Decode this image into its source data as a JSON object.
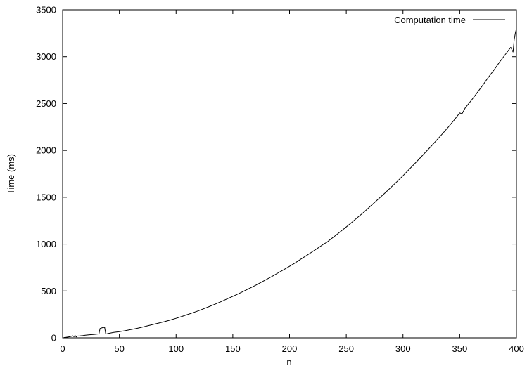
{
  "chart_data": {
    "type": "line",
    "xlabel": "n",
    "ylabel": "Time (ms)",
    "xlim": [
      0,
      400
    ],
    "ylim": [
      0,
      3500
    ],
    "xticks": [
      "0",
      "50",
      "100",
      "150",
      "200",
      "250",
      "300",
      "350",
      "400"
    ],
    "yticks": [
      "0",
      "500",
      "1000",
      "1500",
      "2000",
      "2500",
      "3000",
      "3500"
    ],
    "grid": false,
    "legend": "top-right",
    "series": [
      {
        "name": "Computation time",
        "color": "#000000",
        "x": [
          1,
          3,
          5,
          7,
          9,
          10,
          11,
          12,
          13,
          15,
          18,
          20,
          23,
          25,
          28,
          30,
          32,
          33,
          35,
          37,
          38,
          40,
          45,
          50,
          55,
          60,
          65,
          70,
          75,
          80,
          85,
          90,
          95,
          100,
          105,
          110,
          115,
          120,
          125,
          130,
          135,
          140,
          145,
          150,
          155,
          160,
          165,
          170,
          175,
          180,
          185,
          190,
          195,
          200,
          205,
          210,
          215,
          220,
          225,
          230,
          233,
          235,
          240,
          245,
          250,
          255,
          260,
          265,
          270,
          275,
          280,
          285,
          290,
          295,
          300,
          305,
          310,
          315,
          320,
          325,
          330,
          335,
          340,
          345,
          350,
          352,
          355,
          360,
          365,
          370,
          375,
          380,
          385,
          390,
          395,
          397,
          398,
          399,
          400
        ],
        "y": [
          3,
          6,
          10,
          14,
          22,
          12,
          26,
          10,
          19,
          20,
          24,
          28,
          32,
          34,
          37,
          40,
          42,
          100,
          108,
          112,
          40,
          46,
          58,
          66,
          76,
          88,
          100,
          113,
          128,
          143,
          158,
          173,
          190,
          208,
          228,
          248,
          268,
          290,
          313,
          337,
          362,
          388,
          415,
          443,
          470,
          500,
          530,
          560,
          593,
          625,
          658,
          693,
          728,
          763,
          800,
          840,
          878,
          918,
          958,
          1000,
          1020,
          1040,
          1087,
          1135,
          1183,
          1233,
          1285,
          1335,
          1390,
          1445,
          1500,
          1555,
          1612,
          1670,
          1730,
          1792,
          1855,
          1918,
          1982,
          2047,
          2113,
          2180,
          2250,
          2322,
          2400,
          2390,
          2455,
          2530,
          2610,
          2690,
          2775,
          2855,
          2940,
          3020,
          3100,
          3050,
          3180,
          3250,
          3300
        ]
      }
    ]
  }
}
